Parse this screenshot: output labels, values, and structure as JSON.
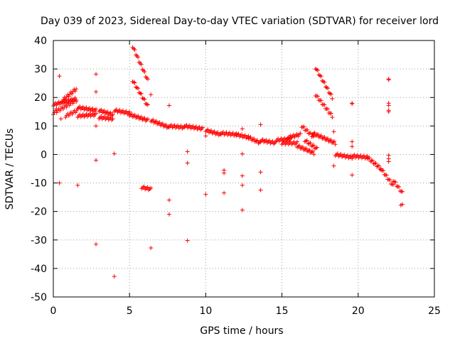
{
  "chart_data": {
    "type": "scatter",
    "title": "Day 039 of 2023, Sidereal Day-to-day VTEC variation (SDTVAR) for receiver lord",
    "xlabel": "GPS time / hours",
    "ylabel": "SDTVAR / TECUs",
    "xlim": [
      0,
      25
    ],
    "ylim": [
      -50,
      40
    ],
    "xticks": [
      0,
      5,
      10,
      15,
      20,
      25
    ],
    "yticks": [
      -50,
      -40,
      -30,
      -20,
      -10,
      0,
      10,
      20,
      30,
      40
    ],
    "grid": true,
    "marker": "+",
    "color": "#ff0000",
    "tracks": [
      {
        "x0": 0.0,
        "x1": 1.5,
        "y0": 14.5,
        "y1": 19.0
      },
      {
        "x0": 0.0,
        "x1": 1.5,
        "y0": 17.5,
        "y1": 19.5
      },
      {
        "x0": 0.6,
        "x1": 1.5,
        "y0": 19.0,
        "y1": 23.0
      },
      {
        "x0": 0.8,
        "x1": 1.6,
        "y0": 13.5,
        "y1": 15.5
      },
      {
        "x0": 1.6,
        "x1": 2.8,
        "y0": 16.5,
        "y1": 15.5
      },
      {
        "x0": 1.6,
        "x1": 2.8,
        "y0": 13.5,
        "y1": 14.0
      },
      {
        "x0": 3.0,
        "x1": 3.9,
        "y0": 15.5,
        "y1": 14.0
      },
      {
        "x0": 3.0,
        "x1": 3.9,
        "y0": 13.0,
        "y1": 12.5
      },
      {
        "x0": 4.0,
        "x1": 5.0,
        "y0": 15.5,
        "y1": 14.5
      },
      {
        "x0": 5.0,
        "x1": 6.2,
        "y0": 14.0,
        "y1": 12.0
      },
      {
        "x0": 5.2,
        "x1": 6.2,
        "y0": 38.0,
        "y1": 26.0
      },
      {
        "x0": 5.2,
        "x1": 6.2,
        "y0": 26.0,
        "y1": 17.0
      },
      {
        "x0": 5.8,
        "x1": 6.4,
        "y0": -11.5,
        "y1": -12.2
      },
      {
        "x0": 6.4,
        "x1": 7.6,
        "y0": 12.0,
        "y1": 9.5
      },
      {
        "x0": 7.6,
        "x1": 8.6,
        "y0": 10.0,
        "y1": 9.5
      },
      {
        "x0": 8.6,
        "x1": 9.8,
        "y0": 10.0,
        "y1": 9.0
      },
      {
        "x0": 10.0,
        "x1": 11.0,
        "y0": 8.5,
        "y1": 7.0
      },
      {
        "x0": 11.0,
        "x1": 12.0,
        "y0": 7.5,
        "y1": 7.0
      },
      {
        "x0": 12.0,
        "x1": 12.8,
        "y0": 7.0,
        "y1": 6.0
      },
      {
        "x0": 12.8,
        "x1": 13.6,
        "y0": 6.0,
        "y1": 4.0
      },
      {
        "x0": 13.6,
        "x1": 14.6,
        "y0": 5.0,
        "y1": 4.0
      },
      {
        "x0": 14.6,
        "x1": 15.6,
        "y0": 5.0,
        "y1": 5.5
      },
      {
        "x0": 15.0,
        "x1": 16.0,
        "y0": 4.0,
        "y1": 4.0
      },
      {
        "x0": 15.4,
        "x1": 16.2,
        "y0": 6.0,
        "y1": 7.0
      },
      {
        "x0": 16.0,
        "x1": 17.1,
        "y0": 3.0,
        "y1": 0.5
      },
      {
        "x0": 16.3,
        "x1": 17.1,
        "y0": 10.0,
        "y1": 6.0
      },
      {
        "x0": 16.5,
        "x1": 17.3,
        "y0": 5.0,
        "y1": 2.0
      },
      {
        "x0": 17.2,
        "x1": 18.3,
        "y0": 30.5,
        "y1": 20.0
      },
      {
        "x0": 17.2,
        "x1": 18.3,
        "y0": 21.0,
        "y1": 13.5
      },
      {
        "x0": 17.0,
        "x1": 18.5,
        "y0": 7.5,
        "y1": 4.0
      },
      {
        "x0": 18.5,
        "x1": 19.6,
        "y0": 0.0,
        "y1": -1.0
      },
      {
        "x0": 19.6,
        "x1": 20.6,
        "y0": -0.5,
        "y1": -1.0
      },
      {
        "x0": 20.6,
        "x1": 21.5,
        "y0": -1.0,
        "y1": -5.0
      },
      {
        "x0": 21.5,
        "x1": 22.3,
        "y0": -5.0,
        "y1": -11.0
      },
      {
        "x0": 22.3,
        "x1": 22.9,
        "y0": -9.0,
        "y1": -13.5
      }
    ],
    "points": [
      [
        0.2,
        16.0
      ],
      [
        0.4,
        27.5
      ],
      [
        0.5,
        12.5
      ],
      [
        0.4,
        -10.0
      ],
      [
        1.6,
        -10.8
      ],
      [
        2.8,
        28.2
      ],
      [
        2.8,
        22.0
      ],
      [
        2.8,
        10.0
      ],
      [
        2.8,
        -2.0
      ],
      [
        2.8,
        -31.5
      ],
      [
        4.0,
        0.3
      ],
      [
        4.0,
        -42.8
      ],
      [
        6.4,
        21.0
      ],
      [
        6.4,
        -32.8
      ],
      [
        7.6,
        17.2
      ],
      [
        7.6,
        -16.0
      ],
      [
        7.6,
        -21.0
      ],
      [
        8.8,
        1.0
      ],
      [
        8.8,
        -3.0
      ],
      [
        8.8,
        -30.2
      ],
      [
        10.0,
        6.5
      ],
      [
        10.0,
        -14.0
      ],
      [
        11.2,
        -5.5
      ],
      [
        11.2,
        -6.5
      ],
      [
        11.2,
        -13.5
      ],
      [
        12.4,
        9.0
      ],
      [
        12.4,
        0.2
      ],
      [
        12.4,
        -7.5
      ],
      [
        12.4,
        -10.8
      ],
      [
        12.4,
        -19.5
      ],
      [
        13.6,
        10.5
      ],
      [
        13.6,
        -6.2
      ],
      [
        13.6,
        -12.5
      ],
      [
        18.4,
        8.0
      ],
      [
        18.4,
        -4.0
      ],
      [
        19.6,
        18.0
      ],
      [
        19.6,
        17.8
      ],
      [
        19.6,
        4.5
      ],
      [
        19.6,
        2.8
      ],
      [
        19.6,
        -7.2
      ],
      [
        22.0,
        26.5
      ],
      [
        22.0,
        26.2
      ],
      [
        22.0,
        18.0
      ],
      [
        22.0,
        17.2
      ],
      [
        22.0,
        15.5
      ],
      [
        22.0,
        15.0
      ],
      [
        22.0,
        -0.3
      ],
      [
        22.0,
        -1.5
      ],
      [
        22.0,
        -2.5
      ],
      [
        22.8,
        -17.8
      ],
      [
        22.9,
        -17.5
      ]
    ]
  }
}
